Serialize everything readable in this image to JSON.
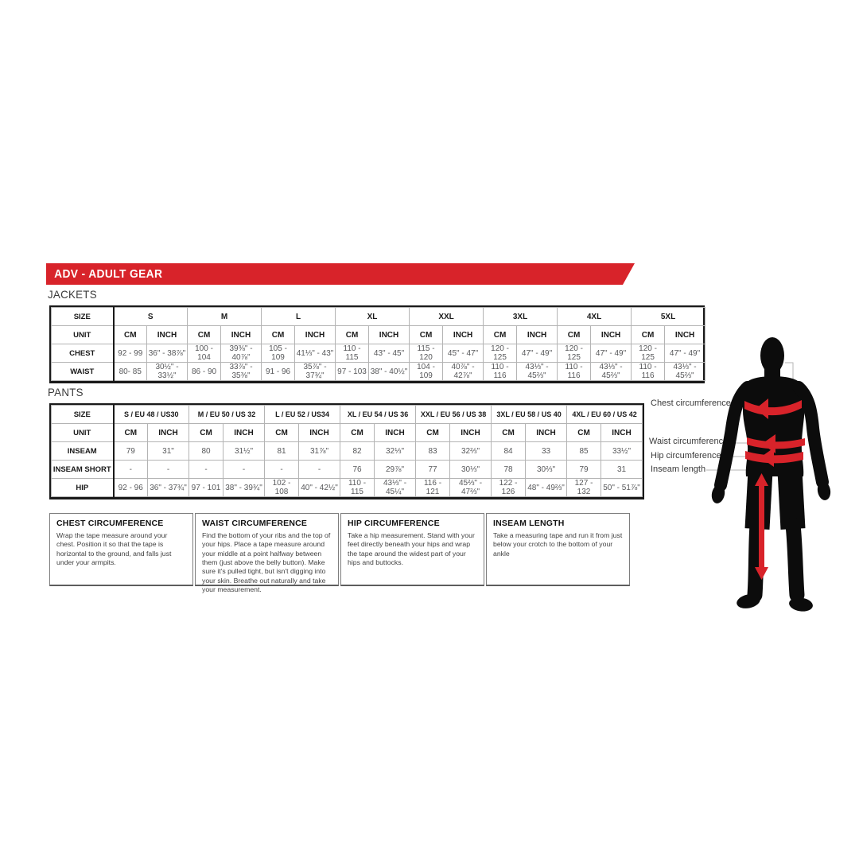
{
  "banner": {
    "title": "ADV - ADULT GEAR",
    "color": "#d8232a"
  },
  "jackets": {
    "heading": "JACKETS",
    "size_label": "SIZE",
    "unit_label": "UNIT",
    "cm_label": "CM",
    "inch_label": "INCH",
    "sizes": [
      "S",
      "M",
      "L",
      "XL",
      "XXL",
      "3XL",
      "4XL",
      "5XL"
    ],
    "rows": [
      {
        "label": "CHEST",
        "values": [
          [
            "92 - 99",
            "36\" - 38⅞\""
          ],
          [
            "100 - 104",
            "39⅜\" - 40⅞\""
          ],
          [
            "105 - 109",
            "41⅓\" - 43\""
          ],
          [
            "110 - 115",
            "43\" - 45\""
          ],
          [
            "115 - 120",
            "45\" - 47\""
          ],
          [
            "120 - 125",
            "47\" - 49\""
          ],
          [
            "120 - 125",
            "47\" - 49\""
          ],
          [
            "120 - 125",
            "47\" - 49\""
          ]
        ]
      },
      {
        "label": "WAIST",
        "values": [
          [
            "80- 85",
            "30½\" - 33½\""
          ],
          [
            "86 - 90",
            "33⅞\" - 35⅜\""
          ],
          [
            "91 - 96",
            "35⅞\" - 37¾\""
          ],
          [
            "97 - 103",
            "38\" - 40½\""
          ],
          [
            "104 - 109",
            "40⅞\" - 42⅞\""
          ],
          [
            "110 - 116",
            "43⅓\" - 45⅔\""
          ],
          [
            "110 - 116",
            "43⅓\" - 45⅔\""
          ],
          [
            "110 - 116",
            "43⅓\" - 45⅔\""
          ]
        ]
      }
    ]
  },
  "pants": {
    "heading": "PANTS",
    "size_label": "SIZE",
    "unit_label": "UNIT",
    "cm_label": "CM",
    "inch_label": "INCH",
    "sizes": [
      "S / EU 48 / US30",
      "M / EU 50 / US 32",
      "L / EU 52 / US34",
      "XL / EU 54 / US 36",
      "XXL / EU 56 / US 38",
      "3XL / EU 58 / US 40",
      "4XL / EU 60 / US 42"
    ],
    "rows": [
      {
        "label": "INSEAM",
        "values": [
          [
            "79",
            "31\""
          ],
          [
            "80",
            "31½\""
          ],
          [
            "81",
            "31⅞\""
          ],
          [
            "82",
            "32⅓\""
          ],
          [
            "83",
            "32⅔\""
          ],
          [
            "84",
            "33"
          ],
          [
            "85",
            "33½\""
          ]
        ]
      },
      {
        "label": "INSEAM SHORT",
        "values": [
          [
            "-",
            "-"
          ],
          [
            "-",
            "-"
          ],
          [
            "-",
            "-"
          ],
          [
            "76",
            "29⅞\""
          ],
          [
            "77",
            "30⅓\""
          ],
          [
            "78",
            "30⅔\""
          ],
          [
            "79",
            "31"
          ]
        ]
      },
      {
        "label": "HIP",
        "values": [
          [
            "92 - 96",
            "36\" - 37¾\""
          ],
          [
            "97 - 101",
            "38\" - 39¾\""
          ],
          [
            "102 - 108",
            "40\" - 42½\""
          ],
          [
            "110 - 115",
            "43⅓\" - 45¼\""
          ],
          [
            "116 - 121",
            "45⅔\" - 47⅔\""
          ],
          [
            "122 - 126",
            "48\" - 49⅔\""
          ],
          [
            "127 - 132",
            "50\" - 51⅞\""
          ]
        ]
      }
    ]
  },
  "instructions": [
    {
      "title": "CHEST CIRCUMFERENCE",
      "body": "Wrap the tape measure around your chest. Position it so that the tape is horizontal to the ground, and falls just under your armpits."
    },
    {
      "title": "WAIST CIRCUMFERENCE",
      "body": "Find the bottom of your ribs and the top of your hips. Place a tape measure around your middle at a point halfway between them (just above the belly button). Make sure it's pulled tight, but isn't digging into your skin. Breathe out naturally and take your measurement."
    },
    {
      "title": "HIP CIRCUMFERENCE",
      "body": "Take a hip measurement. Stand with your feet directly beneath your hips and wrap the tape around the widest part of your hips and buttocks."
    },
    {
      "title": "INSEAM LENGTH",
      "body": "Take a measuring tape and run it from just below your crotch to the bottom of your ankle"
    }
  ],
  "figure": {
    "labels": {
      "chest": "Chest circumference",
      "waist": "Waist circumference",
      "hip": "Hip circumference",
      "inseam": "Inseam length"
    },
    "icon": "body-silhouette-with-measurement-bands",
    "band_color": "#d8232a",
    "silhouette_color": "#0c0c0c"
  }
}
